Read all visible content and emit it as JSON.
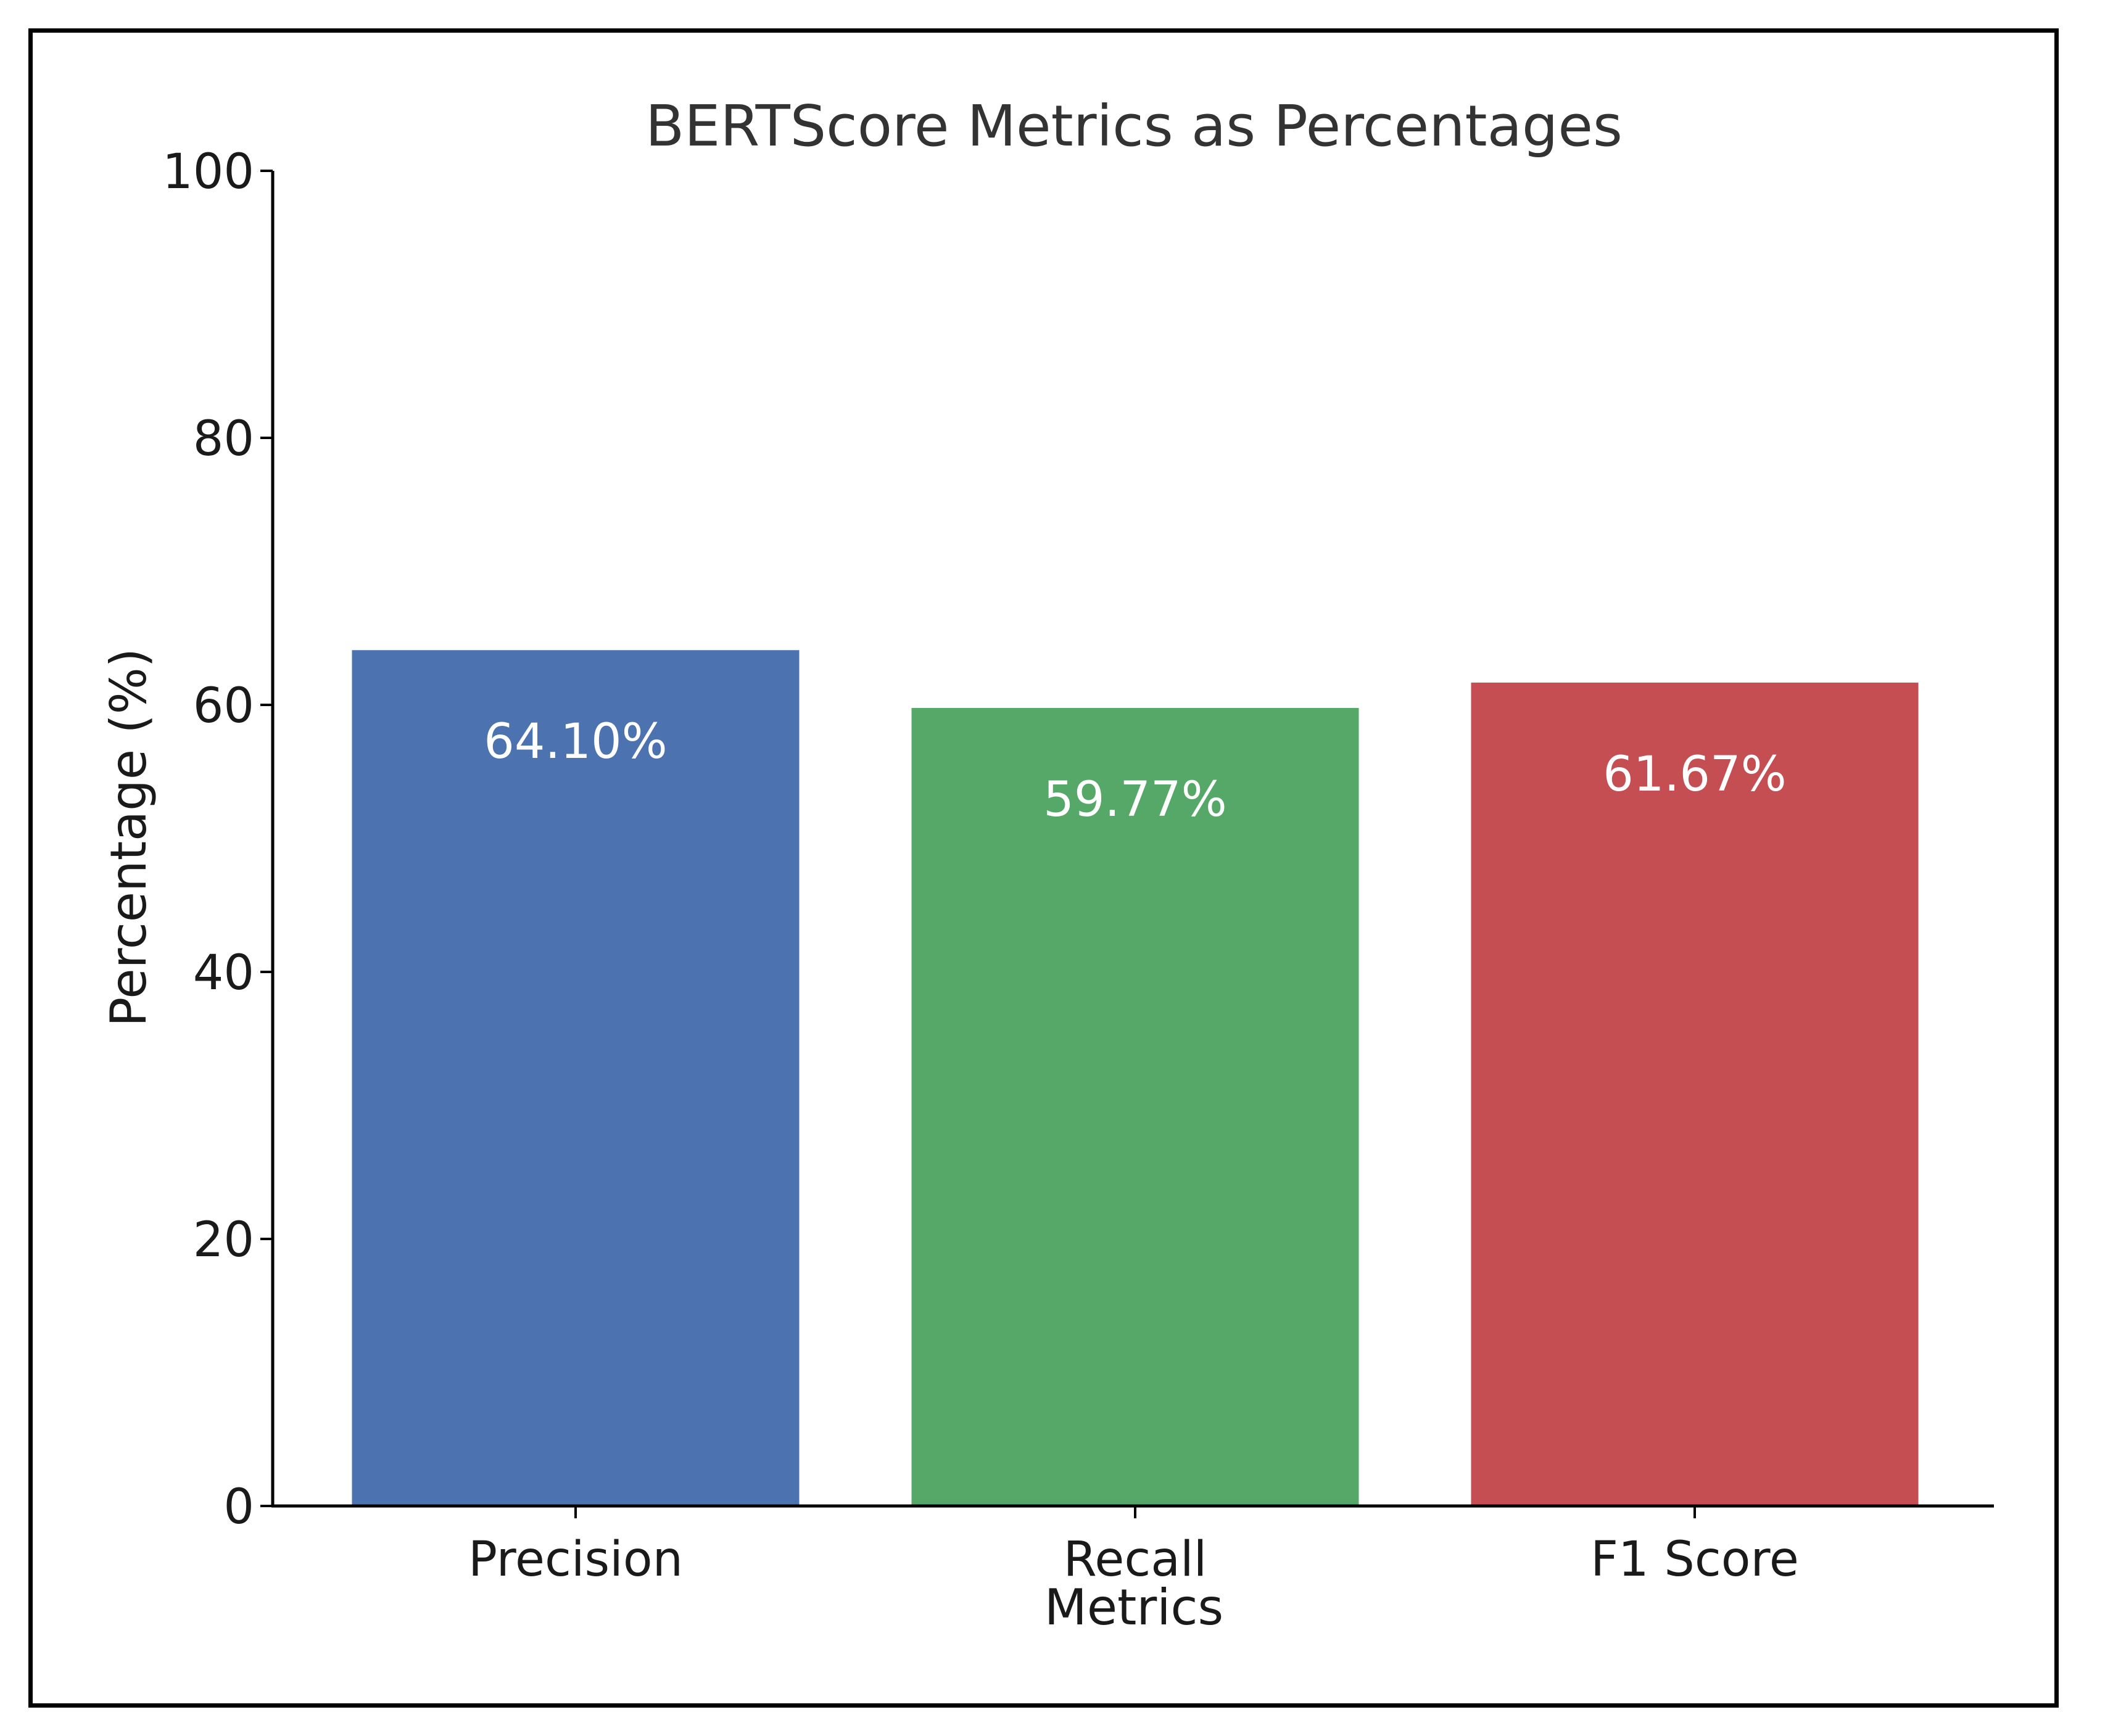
{
  "chart_data": {
    "type": "bar",
    "title": "BERTScore Metrics as Percentages",
    "xlabel": "Metrics",
    "ylabel": "Percentage (%)",
    "categories": [
      "Precision",
      "Recall",
      "F1 Score"
    ],
    "values": [
      64.1,
      59.77,
      61.67
    ],
    "value_labels": [
      "64.10%",
      "59.77%",
      "61.67%"
    ],
    "bar_colors": [
      "#4c72b0",
      "#55a868",
      "#c44e52"
    ],
    "ylim": [
      0,
      100
    ],
    "yticks": [
      0,
      20,
      40,
      60,
      80,
      100
    ],
    "ytick_labels": [
      "0",
      "20",
      "40",
      "60",
      "80",
      "100"
    ],
    "grid": false,
    "legend": "none"
  }
}
